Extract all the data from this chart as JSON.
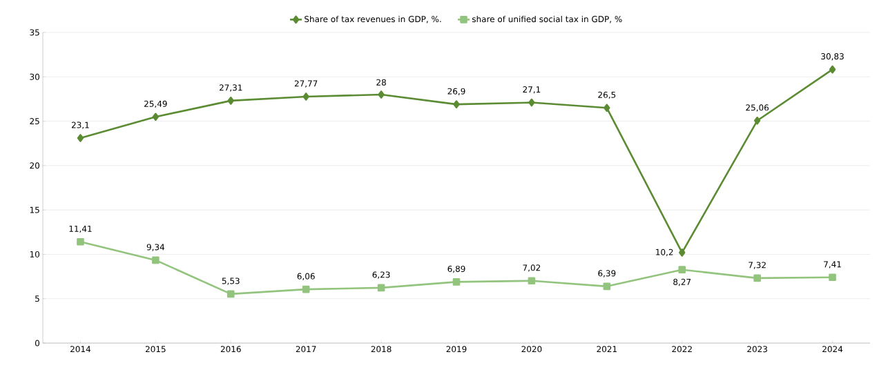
{
  "chart_data": {
    "type": "line",
    "categories": [
      "2014",
      "2015",
      "2016",
      "2017",
      "2018",
      "2019",
      "2020",
      "2021",
      "2022",
      "2023",
      "2024"
    ],
    "series": [
      {
        "name": "Share of tax revenues in GDP, %.",
        "color": "#5b8b32",
        "marker": "diamond",
        "values": [
          23.1,
          25.49,
          27.31,
          27.77,
          28,
          26.9,
          27.1,
          26.5,
          10.2,
          25.06,
          30.83
        ],
        "value_labels": [
          "23,1",
          "25,49",
          "27,31",
          "27,77",
          "28",
          "26,9",
          "27,1",
          "26,5",
          "10,2",
          "25,06",
          "30,83"
        ]
      },
      {
        "name": "share of unified social tax in GDP, %",
        "color": "#93c47d",
        "marker": "square",
        "values": [
          11.41,
          9.34,
          5.53,
          6.06,
          6.23,
          6.89,
          7.02,
          6.39,
          8.27,
          7.32,
          7.41
        ],
        "value_labels": [
          "11,41",
          "9,34",
          "5,53",
          "6,06",
          "6,23",
          "6,89",
          "7,02",
          "6,39",
          "8,27",
          "7,32",
          "7,41"
        ]
      }
    ],
    "ylim": [
      0,
      35
    ],
    "yticks": [
      0,
      5,
      10,
      15,
      20,
      25,
      30,
      35
    ],
    "grid": "y",
    "legend": "top",
    "line_style": "solid"
  }
}
